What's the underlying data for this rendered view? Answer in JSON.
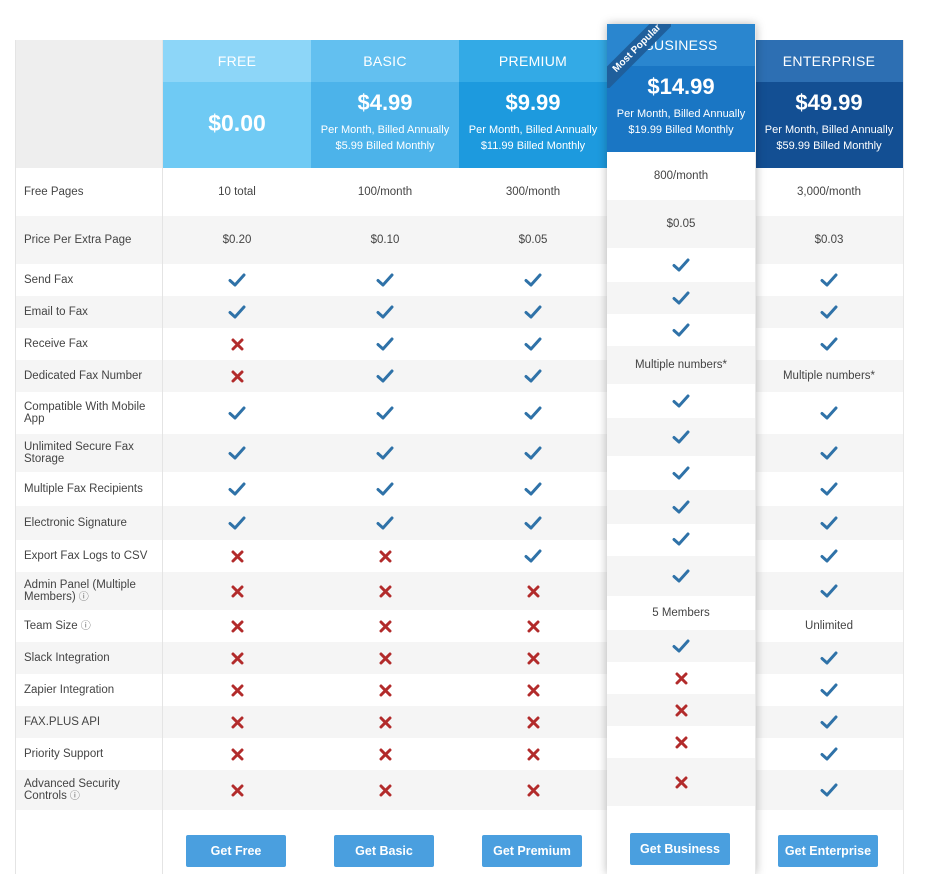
{
  "feature_labels": [
    "Free Pages",
    "Price Per Extra Page",
    "Send Fax",
    "Email to Fax",
    "Receive Fax",
    "Dedicated Fax Number",
    "Compatible With Mobile App",
    "Unlimited Secure Fax Storage",
    "Multiple Fax Recipients",
    "Electronic Signature",
    "Export Fax Logs to CSV",
    "Admin Panel (Multiple Members)",
    "Team Size",
    "Slack Integration",
    "Zapier Integration",
    "FAX.PLUS API",
    "Priority Support",
    "Advanced Security Controls"
  ],
  "info_icon_rows": [
    11,
    12,
    17
  ],
  "plans": [
    {
      "name": "FREE",
      "price": "$0.00",
      "sub1": "",
      "sub2": "",
      "header_color": "#8dd6f8",
      "price_color": "#6fcaf4",
      "button": "Get Free",
      "features": [
        "10 total",
        "$0.20",
        "check",
        "check",
        "cross",
        "cross",
        "check",
        "check",
        "check",
        "check",
        "cross",
        "cross",
        "cross",
        "cross",
        "cross",
        "cross",
        "cross",
        "cross"
      ]
    },
    {
      "name": "BASIC",
      "price": "$4.99",
      "sub1": "Per Month, Billed Annually",
      "sub2": "$5.99 Billed Monthly",
      "header_color": "#63c0f0",
      "price_color": "#4cb3ea",
      "button": "Get Basic",
      "features": [
        "100/month",
        "$0.10",
        "check",
        "check",
        "check",
        "check",
        "check",
        "check",
        "check",
        "check",
        "cross",
        "cross",
        "cross",
        "cross",
        "cross",
        "cross",
        "cross",
        "cross"
      ]
    },
    {
      "name": "PREMIUM",
      "price": "$9.99",
      "sub1": "Per Month, Billed Annually",
      "sub2": "$11.99 Billed Monthly",
      "header_color": "#33aae6",
      "price_color": "#1d9ade",
      "button": "Get Premium",
      "features": [
        "300/month",
        "$0.05",
        "check",
        "check",
        "check",
        "check",
        "check",
        "check",
        "check",
        "check",
        "check",
        "cross",
        "cross",
        "cross",
        "cross",
        "cross",
        "cross",
        "cross"
      ]
    },
    {
      "name": "BUSINESS",
      "price": "$14.99",
      "sub1": "Per Month, Billed Annually",
      "sub2": "$19.99 Billed Monthly",
      "header_color": "#2a86cf",
      "price_color": "#1a76c4",
      "button": "Get Business",
      "ribbon": "Most Popular",
      "features": [
        "800/month",
        "$0.05",
        "check",
        "check",
        "check",
        "Multiple numbers*",
        "check",
        "check",
        "check",
        "check",
        "check",
        "check",
        "5 Members",
        "check",
        "cross",
        "cross",
        "cross",
        "cross"
      ]
    },
    {
      "name": "ENTERPRISE",
      "price": "$49.99",
      "sub1": "Per Month, Billed Annually",
      "sub2": "$59.99 Billed Monthly",
      "header_color": "#2d6fb3",
      "price_color": "#134f93",
      "button": "Get Enterprise",
      "features": [
        "3,000/month",
        "$0.03",
        "check",
        "check",
        "check",
        "Multiple numbers*",
        "check",
        "check",
        "check",
        "check",
        "check",
        "check",
        "Unlimited",
        "check",
        "check",
        "check",
        "check",
        "check"
      ]
    }
  ],
  "icons": {
    "check_color": "#2f72a8",
    "cross_color": "#b22b2b",
    "info": "ⓘ"
  }
}
